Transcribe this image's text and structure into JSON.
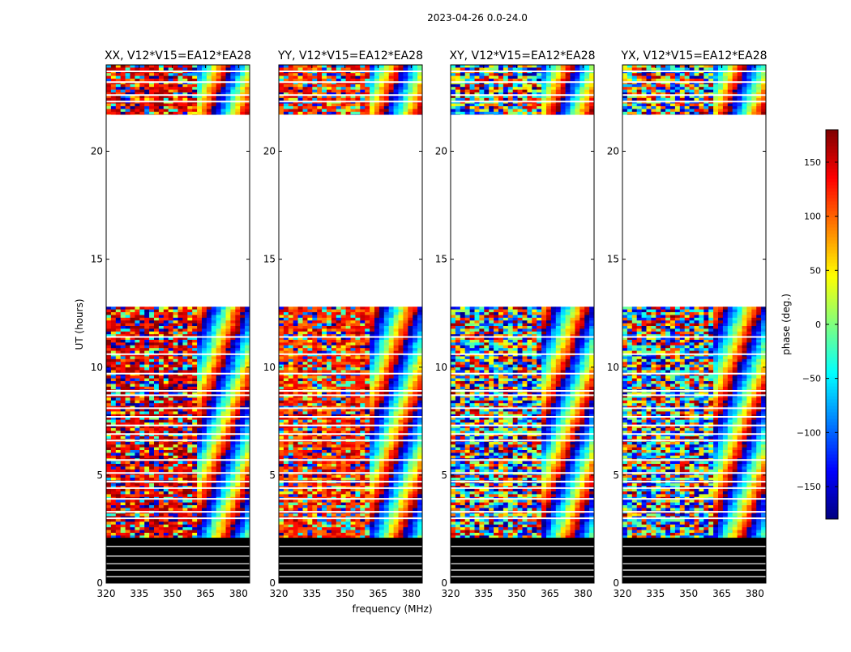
{
  "chart_data": {
    "type": "heatmap",
    "suptitle": "2023-04-26 0.0-24.0",
    "xlabel": "frequency (MHz)",
    "ylabel": "UT (hours)",
    "xlim": [
      320,
      385
    ],
    "ylim": [
      0,
      24
    ],
    "xticks": [
      320,
      335,
      350,
      365,
      380
    ],
    "yticks": [
      0,
      5,
      10,
      15,
      20
    ],
    "panels": [
      {
        "title": "XX, V12*V15=EA12*EA28",
        "kind": "parallel-hand",
        "dominant_phase_deg": 150
      },
      {
        "title": "YY, V12*V15=EA12*EA28",
        "kind": "parallel-hand",
        "dominant_phase_deg": 120
      },
      {
        "title": "XY, V12*V15=EA12*EA28",
        "kind": "cross-hand",
        "dominant_phase_deg": 0
      },
      {
        "title": "YX, V12*V15=EA12*EA28",
        "kind": "cross-hand",
        "dominant_phase_deg": 0
      }
    ],
    "data_bands_ut": [
      {
        "start": 21.7,
        "end": 24.0,
        "state": "data"
      },
      {
        "start": 12.8,
        "end": 21.7,
        "state": "empty"
      },
      {
        "start": 2.1,
        "end": 12.8,
        "state": "data"
      },
      {
        "start": 0.0,
        "end": 2.1,
        "state": "flagged"
      }
    ],
    "gap_lines_ut": [
      23.7,
      23.2,
      22.6,
      22.3,
      11.4,
      10.6,
      9.7,
      8.9,
      8.7,
      8.1,
      7.7,
      7.3,
      6.9,
      6.6,
      5.7,
      5.1,
      4.7,
      4.4,
      3.9,
      3.3,
      3.0
    ],
    "colorbar": {
      "label": "phase (deg.)",
      "range": [
        -180,
        180
      ],
      "ticks": [
        150,
        100,
        50,
        0,
        -50,
        -100,
        -150
      ],
      "tick_labels": [
        "150",
        "100",
        "50",
        "0",
        "−50",
        "−100",
        "−150"
      ],
      "colormap": [
        "#00007f",
        "#0000ff",
        "#007fff",
        "#00ffff",
        "#7fff7f",
        "#ffff00",
        "#ff7f00",
        "#ff0000",
        "#7f0000"
      ]
    }
  }
}
